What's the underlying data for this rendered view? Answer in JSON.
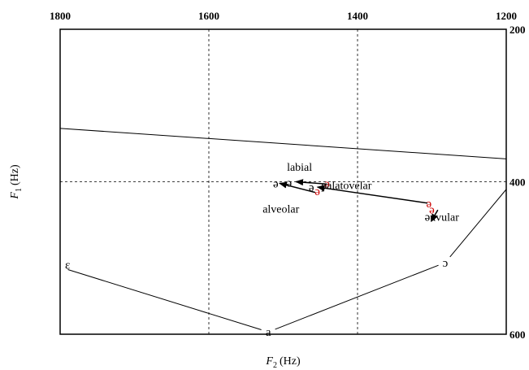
{
  "chart_data": {
    "type": "scatter",
    "title": "",
    "xlabel": "F2 (Hz)",
    "ylabel": "F1 (Hz)",
    "xlabel_parts": {
      "symbol": "F",
      "sub": "2",
      "unit": "(Hz)"
    },
    "ylabel_parts": {
      "symbol": "F",
      "sub": "1",
      "unit": "(Hz)"
    },
    "x_axis": {
      "reversed": true,
      "range": [
        1800,
        1200
      ],
      "ticks": [
        1800,
        1600,
        1400,
        1200
      ],
      "tick_labels": [
        "1800",
        "1600",
        "1400",
        "1200"
      ],
      "position": "top"
    },
    "y_axis": {
      "reversed": false,
      "range": [
        200,
        600
      ],
      "ticks": [
        200,
        400,
        600
      ],
      "tick_labels": [
        "200",
        "400",
        "600"
      ],
      "position": "right"
    },
    "grid": {
      "x": [
        1600,
        1400
      ],
      "y": [
        400
      ]
    },
    "vowel_space": {
      "points": [
        {
          "label": "ɛ",
          "f2": 1790,
          "f1": 509
        },
        {
          "label": "a",
          "f2": 1520,
          "f1": 597
        },
        {
          "label": "ɔ",
          "f2": 1282,
          "f1": 506
        }
      ],
      "boundary": [
        {
          "f2": 1800,
          "f1": 512
        },
        {
          "f2": 1520,
          "f1": 597
        },
        {
          "f2": 1282,
          "f1": 506
        },
        {
          "f2": 1200,
          "f1": 410
        }
      ]
    },
    "upper_line": [
      {
        "f2": 1800,
        "f1": 330
      },
      {
        "f2": 1200,
        "f1": 370
      }
    ],
    "group_labels": [
      {
        "text": "labial",
        "f2": 1478,
        "f1": 380
      },
      {
        "text": "palatovelar",
        "f2": 1415,
        "f1": 404
      },
      {
        "text": "alveolar",
        "f2": 1503,
        "f1": 435
      },
      {
        "text": "uvular",
        "f2": 1283,
        "f1": 446
      }
    ],
    "schwa_points": [
      {
        "label": "ə",
        "f2": 1510,
        "f1": 402,
        "color": "#000000"
      },
      {
        "label": "ə",
        "f2": 1492,
        "f1": 401,
        "color": "#000000"
      },
      {
        "label": "ə",
        "f2": 1441,
        "f1": 402,
        "color": "#cc0000"
      },
      {
        "label": "ə",
        "f2": 1462,
        "f1": 407,
        "color": "#000000"
      },
      {
        "label": "ə",
        "f2": 1454,
        "f1": 412,
        "color": "#cc0000"
      },
      {
        "label": "ə",
        "f2": 1304,
        "f1": 428,
        "color": "#cc0000"
      },
      {
        "label": "ə",
        "f2": 1300,
        "f1": 436,
        "color": "#cc0000"
      },
      {
        "label": "ə",
        "f2": 1306,
        "f1": 446,
        "color": "#000000"
      }
    ],
    "arrows": [
      {
        "from": {
          "f2": 1441,
          "f1": 403
        },
        "to": {
          "f2": 1483,
          "f1": 400
        }
      },
      {
        "from": {
          "f2": 1457,
          "f1": 414
        },
        "to": {
          "f2": 1505,
          "f1": 402
        }
      },
      {
        "from": {
          "f2": 1306,
          "f1": 428
        },
        "to": {
          "f2": 1454,
          "f1": 407
        }
      },
      {
        "from": {
          "f2": 1292,
          "f1": 437
        },
        "to": {
          "f2": 1301,
          "f1": 452
        }
      }
    ],
    "colors": {
      "red": "#cc0000",
      "black": "#000000"
    }
  }
}
